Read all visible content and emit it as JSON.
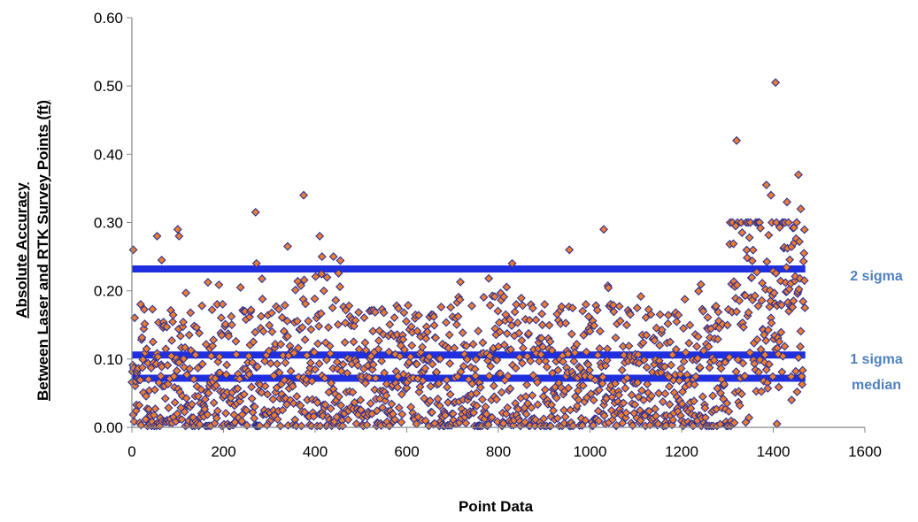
{
  "chart_data": {
    "type": "scatter",
    "xlabel": "Point Data",
    "ylabel_line1": "Absolute Accuracy",
    "ylabel_line2": "Between Laser and RTK Survey Points (ft)",
    "xlim": [
      0,
      1600
    ],
    "ylim": [
      0,
      0.6
    ],
    "x_ticks": [
      "0",
      "200",
      "400",
      "600",
      "800",
      "1000",
      "1200",
      "1400",
      "1600"
    ],
    "y_ticks": [
      "0.00",
      "0.10",
      "0.20",
      "0.30",
      "0.40",
      "0.50",
      "0.60"
    ],
    "grid": false,
    "legend": "none",
    "marker_fill": "#ED7D31",
    "marker_stroke": "#2E3192",
    "reference_lines": [
      {
        "label": "2 sigma",
        "value": 0.232,
        "x_start": 0,
        "x_end": 1470,
        "color": "#1F2FE0",
        "label_color": "#4F81BD"
      },
      {
        "label": "1 sigma",
        "value": 0.106,
        "x_start": 0,
        "x_end": 1470,
        "color": "#1F2FE0",
        "label_color": "#4F81BD"
      },
      {
        "label": "median",
        "value": 0.072,
        "x_start": 0,
        "x_end": 1470,
        "color": "#1F2FE0",
        "label_color": "#4F81BD"
      }
    ],
    "n_points": 1470,
    "highlighted_points": [
      {
        "x": 3,
        "y": 0.26
      },
      {
        "x": 55,
        "y": 0.28
      },
      {
        "x": 65,
        "y": 0.245
      },
      {
        "x": 100,
        "y": 0.29
      },
      {
        "x": 103,
        "y": 0.28
      },
      {
        "x": 270,
        "y": 0.315
      },
      {
        "x": 272,
        "y": 0.24
      },
      {
        "x": 340,
        "y": 0.265
      },
      {
        "x": 375,
        "y": 0.34
      },
      {
        "x": 410,
        "y": 0.28
      },
      {
        "x": 415,
        "y": 0.25
      },
      {
        "x": 440,
        "y": 0.25
      },
      {
        "x": 830,
        "y": 0.24
      },
      {
        "x": 955,
        "y": 0.26
      },
      {
        "x": 1030,
        "y": 0.29
      },
      {
        "x": 1320,
        "y": 0.42
      },
      {
        "x": 1318,
        "y": 0.295
      },
      {
        "x": 1385,
        "y": 0.355
      },
      {
        "x": 1395,
        "y": 0.34
      },
      {
        "x": 1405,
        "y": 0.505
      },
      {
        "x": 1430,
        "y": 0.33
      },
      {
        "x": 1455,
        "y": 0.37
      },
      {
        "x": 1460,
        "y": 0.32
      },
      {
        "x": 1468,
        "y": 0.215
      },
      {
        "x": 1408,
        "y": 0.005
      },
      {
        "x": 1440,
        "y": 0.04
      }
    ]
  }
}
